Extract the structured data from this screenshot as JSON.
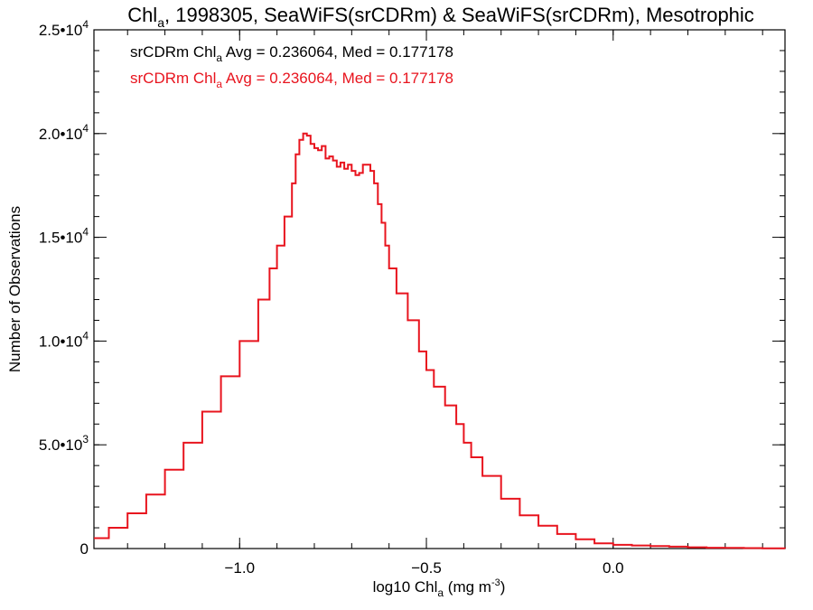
{
  "chart_data": {
    "type": "line",
    "title": {
      "pre": "Chl",
      "sub": "a",
      "post": ", 1998305, SeaWiFS(srCDRm) & SeaWiFS(srCDRm), Mesotrophic"
    },
    "xlabel": {
      "pre": "log10 Chl",
      "sub": "a",
      "mid": " (mg m",
      "sup": "-3",
      "post": ")"
    },
    "ylabel": "Number of Observations",
    "xlim": [
      -1.39,
      0.46
    ],
    "ylim": [
      0,
      25000
    ],
    "x_ticks": [
      {
        "value": -1.0,
        "label": "−1.0"
      },
      {
        "value": -0.5,
        "label": "−0.5"
      },
      {
        "value": 0.0,
        "label": "0.0"
      }
    ],
    "y_ticks": [
      {
        "value": 0,
        "label": "0"
      },
      {
        "value": 5000,
        "mant": "5.0•10",
        "exp": "3"
      },
      {
        "value": 10000,
        "mant": "1.0•10",
        "exp": "4"
      },
      {
        "value": 15000,
        "mant": "1.5•10",
        "exp": "4"
      },
      {
        "value": 20000,
        "mant": "2.0•10",
        "exp": "4"
      },
      {
        "value": 25000,
        "mant": "2.5•10",
        "exp": "4"
      }
    ],
    "x_minor_step": 0.1,
    "y_minor_step": 1000,
    "annotations": [
      {
        "pre": "srCDRm Chl",
        "sub": "a",
        "post": " Avg = 0.236064, Med = 0.177178",
        "color": "#000000"
      },
      {
        "pre": "srCDRm Chl",
        "sub": "a",
        "post": " Avg = 0.236064, Med = 0.177178",
        "color": "#e8141e"
      }
    ],
    "series": [
      {
        "color": "#e8141e",
        "style": "step",
        "x": [
          -1.39,
          -1.35,
          -1.3,
          -1.25,
          -1.2,
          -1.15,
          -1.1,
          -1.05,
          -1.0,
          -0.95,
          -0.92,
          -0.9,
          -0.88,
          -0.86,
          -0.85,
          -0.84,
          -0.83,
          -0.82,
          -0.81,
          -0.8,
          -0.79,
          -0.78,
          -0.77,
          -0.76,
          -0.75,
          -0.74,
          -0.73,
          -0.72,
          -0.71,
          -0.7,
          -0.69,
          -0.68,
          -0.67,
          -0.66,
          -0.65,
          -0.64,
          -0.63,
          -0.62,
          -0.61,
          -0.6,
          -0.58,
          -0.55,
          -0.52,
          -0.5,
          -0.48,
          -0.45,
          -0.42,
          -0.4,
          -0.38,
          -0.35,
          -0.3,
          -0.25,
          -0.2,
          -0.15,
          -0.1,
          -0.05,
          0.0,
          0.05,
          0.1,
          0.15,
          0.2,
          0.25,
          0.3,
          0.35,
          0.4,
          0.46
        ],
        "y": [
          500,
          1000,
          1700,
          2600,
          3800,
          5100,
          6600,
          8300,
          10000,
          12000,
          13500,
          14600,
          16000,
          17600,
          19000,
          19700,
          20000,
          19900,
          19500,
          19300,
          19200,
          19400,
          18800,
          18900,
          18700,
          18400,
          18600,
          18300,
          18500,
          18200,
          18000,
          18100,
          18500,
          18500,
          18200,
          17600,
          16600,
          15700,
          14600,
          13500,
          12300,
          11000,
          9500,
          8600,
          7800,
          6900,
          6000,
          5100,
          4400,
          3500,
          2400,
          1600,
          1100,
          700,
          450,
          250,
          180,
          150,
          120,
          90,
          60,
          40,
          30,
          20,
          10,
          5
        ]
      }
    ]
  }
}
